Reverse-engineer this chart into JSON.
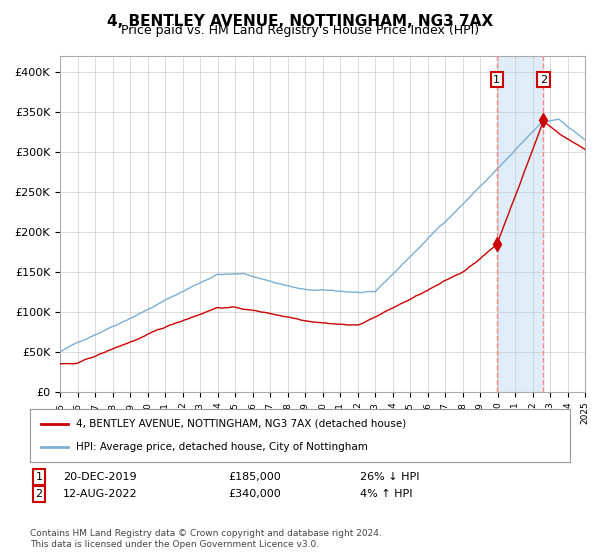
{
  "title": "4, BENTLEY AVENUE, NOTTINGHAM, NG3 7AX",
  "subtitle": "Price paid vs. HM Land Registry's House Price Index (HPI)",
  "title_fontsize": 11,
  "subtitle_fontsize": 9,
  "background_color": "#ffffff",
  "plot_bg_color": "#ffffff",
  "grid_color": "#cccccc",
  "hpi_line_color": "#7bafd4",
  "price_line_color": "#cc0000",
  "shade_color": "#daeaf7",
  "dashed_line_color": "#ff8888",
  "marker_color": "#cc0000",
  "ylim": [
    0,
    420000
  ],
  "yticks": [
    0,
    50000,
    100000,
    150000,
    200000,
    250000,
    300000,
    350000,
    400000
  ],
  "ytick_labels": [
    "£0",
    "£50K",
    "£100K",
    "£150K",
    "£200K",
    "£250K",
    "£300K",
    "£350K",
    "£400K"
  ],
  "x_start_year": 1995,
  "x_end_year": 2025,
  "transaction1": {
    "date_label": "20-DEC-2019",
    "year": 2019.96,
    "price": 185000,
    "note": "26% ↓ HPI",
    "marker_num": "1"
  },
  "transaction2": {
    "date_label": "12-AUG-2022",
    "year": 2022.62,
    "price": 340000,
    "note": "4% ↑ HPI",
    "marker_num": "2"
  },
  "legend_entry1": "4, BENTLEY AVENUE, NOTTINGHAM, NG3 7AX (detached house)",
  "legend_entry2": "HPI: Average price, detached house, City of Nottingham",
  "footnote": "Contains HM Land Registry data © Crown copyright and database right 2024.\nThis data is licensed under the Open Government Licence v3.0."
}
